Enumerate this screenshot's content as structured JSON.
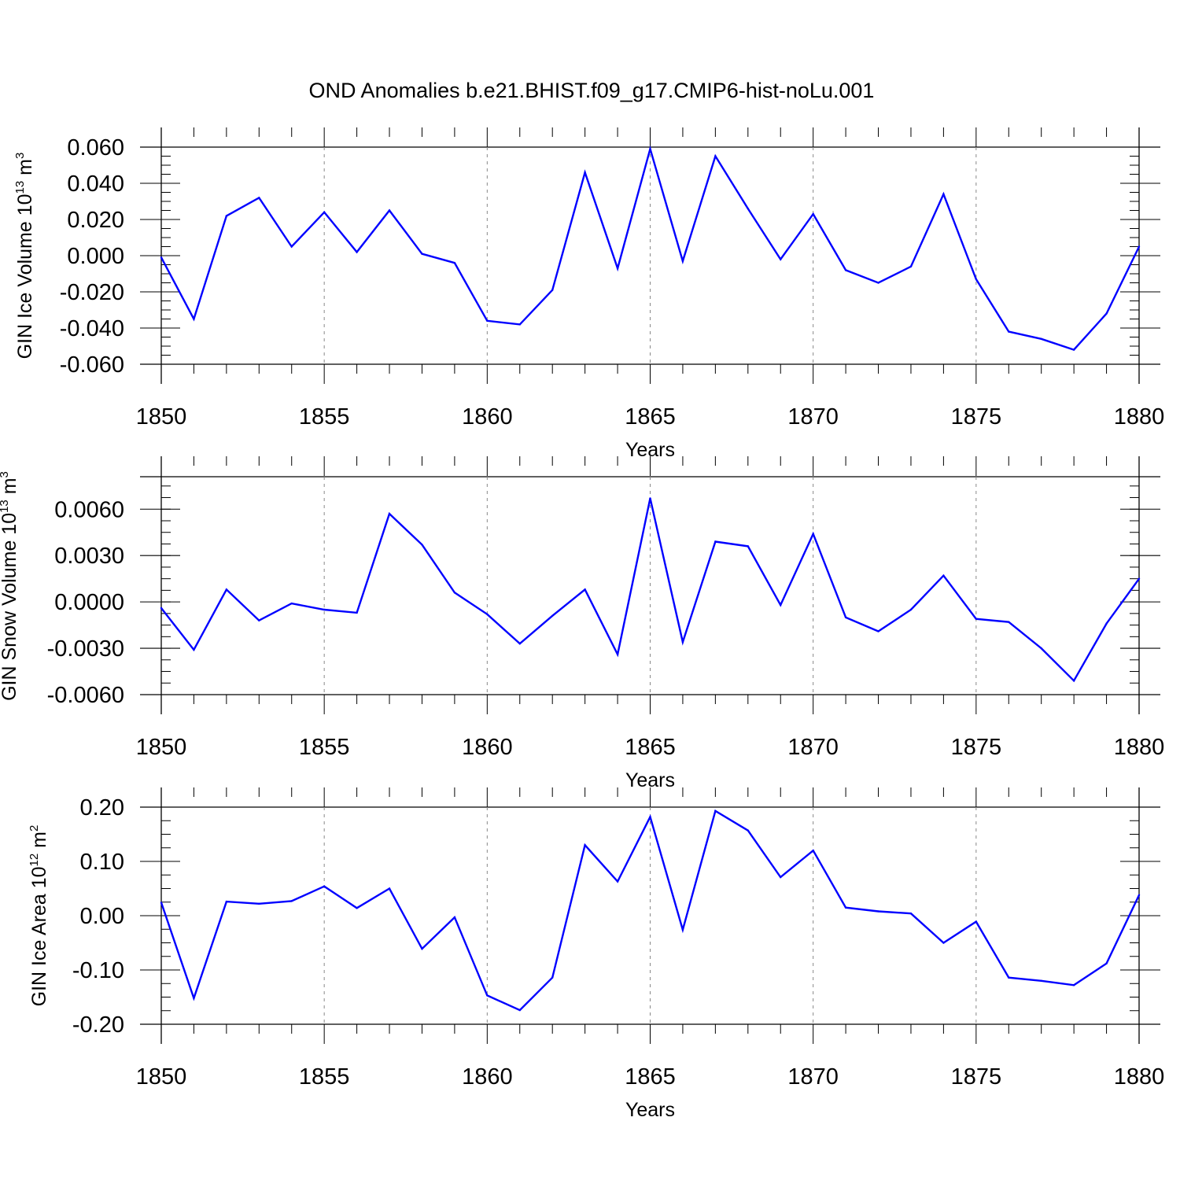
{
  "figure": {
    "title": "OND Anomalies b.e21.BHIST.f09_g17.CMIP6-hist-noLu.001",
    "line_color": "#0000ff"
  },
  "chart_data": [
    {
      "type": "line",
      "xlabel": "Years",
      "ylabel": {
        "text": "GIN Ice Volume 10",
        "exp": "13",
        "unit": " m",
        "unit_exp": "3"
      },
      "xlim": [
        1850,
        1880
      ],
      "ylim": [
        -0.06,
        0.06
      ],
      "xticks": [
        1850,
        1855,
        1860,
        1865,
        1870,
        1875,
        1880
      ],
      "yticks": [
        -0.06,
        -0.04,
        -0.02,
        0.0,
        0.02,
        0.04,
        0.06
      ],
      "ytick_labels": [
        "-0.060",
        "-0.040",
        "-0.020",
        "0.000",
        "0.020",
        "0.040",
        "0.060"
      ],
      "x": [
        1850,
        1851,
        1852,
        1853,
        1854,
        1855,
        1856,
        1857,
        1858,
        1859,
        1860,
        1861,
        1862,
        1863,
        1864,
        1865,
        1866,
        1867,
        1868,
        1869,
        1870,
        1871,
        1872,
        1873,
        1874,
        1875,
        1876,
        1877,
        1878,
        1879,
        1880
      ],
      "values": [
        -0.001,
        -0.035,
        0.022,
        0.032,
        0.005,
        0.024,
        0.002,
        0.025,
        0.001,
        -0.004,
        -0.036,
        -0.038,
        -0.019,
        0.046,
        -0.007,
        0.059,
        -0.003,
        0.055,
        0.026,
        -0.002,
        0.023,
        -0.008,
        -0.015,
        -0.006,
        0.034,
        -0.013,
        -0.042,
        -0.046,
        -0.052,
        -0.032,
        0.005
      ]
    },
    {
      "type": "line",
      "xlabel": "Years",
      "ylabel": {
        "text": "GIN Snow Volume 10",
        "exp": "13",
        "unit": " m",
        "unit_exp": "3"
      },
      "xlim": [
        1850,
        1880
      ],
      "ylim": [
        -0.006,
        0.0081
      ],
      "xticks": [
        1850,
        1855,
        1860,
        1865,
        1870,
        1875,
        1880
      ],
      "yticks": [
        -0.006,
        -0.003,
        0.0,
        0.003,
        0.006
      ],
      "ytick_labels": [
        "-0.0060",
        "-0.0030",
        "0.0000",
        "0.0030",
        "0.0060"
      ],
      "x": [
        1850,
        1851,
        1852,
        1853,
        1854,
        1855,
        1856,
        1857,
        1858,
        1859,
        1860,
        1861,
        1862,
        1863,
        1864,
        1865,
        1866,
        1867,
        1868,
        1869,
        1870,
        1871,
        1872,
        1873,
        1874,
        1875,
        1876,
        1877,
        1878,
        1879,
        1880
      ],
      "values": [
        -0.0004,
        -0.0031,
        0.0008,
        -0.0012,
        -0.0001,
        -0.0005,
        -0.0007,
        0.0057,
        0.0037,
        0.0006,
        -0.0008,
        -0.0027,
        -0.0009,
        0.0008,
        -0.0034,
        0.0067,
        -0.0026,
        0.0039,
        0.0036,
        -0.0002,
        0.0044,
        -0.001,
        -0.0019,
        -0.0005,
        0.0017,
        -0.0011,
        -0.0013,
        -0.003,
        -0.0051,
        -0.0014,
        0.0015
      ]
    },
    {
      "type": "line",
      "xlabel": "Years",
      "ylabel": {
        "text": "GIN Ice Area 10",
        "exp": "12",
        "unit": " m",
        "unit_exp": "2"
      },
      "xlim": [
        1850,
        1880
      ],
      "ylim": [
        -0.2,
        0.2
      ],
      "xticks": [
        1850,
        1855,
        1860,
        1865,
        1870,
        1875,
        1880
      ],
      "yticks": [
        -0.2,
        -0.1,
        0.0,
        0.1,
        0.2
      ],
      "ytick_labels": [
        "-0.20",
        "-0.10",
        "0.00",
        "0.10",
        "0.20"
      ],
      "x": [
        1850,
        1851,
        1852,
        1853,
        1854,
        1855,
        1856,
        1857,
        1858,
        1859,
        1860,
        1861,
        1862,
        1863,
        1864,
        1865,
        1866,
        1867,
        1868,
        1869,
        1870,
        1871,
        1872,
        1873,
        1874,
        1875,
        1876,
        1877,
        1878,
        1879,
        1880
      ],
      "values": [
        0.024,
        -0.152,
        0.026,
        0.022,
        0.027,
        0.054,
        0.014,
        0.05,
        -0.061,
        -0.003,
        -0.147,
        -0.174,
        -0.114,
        0.13,
        0.063,
        0.182,
        -0.026,
        0.193,
        0.157,
        0.071,
        0.12,
        0.015,
        0.008,
        0.004,
        -0.05,
        -0.011,
        -0.114,
        -0.12,
        -0.128,
        -0.088,
        0.038
      ]
    }
  ]
}
